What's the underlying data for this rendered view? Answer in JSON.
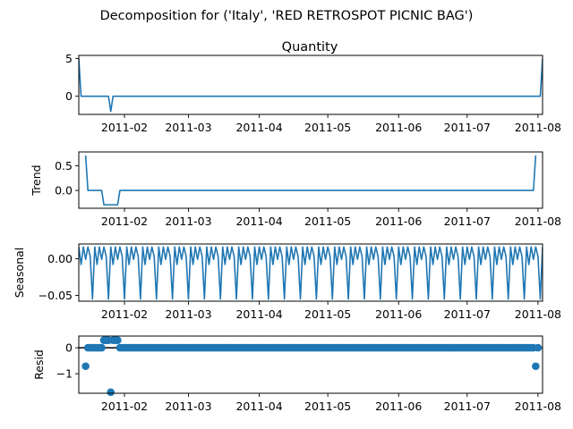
{
  "suptitle": "Decomposition for ('Italy', 'RED RETROSPOT PICNIC BAG')",
  "colors": {
    "line": "#1f77b4",
    "zero_line": "#000000"
  },
  "chart_data": {
    "type": "line",
    "x_range": [
      "2011-01-12",
      "2011-08-03"
    ],
    "x_ticks": [
      "2011-02-01",
      "2011-03-01",
      "2011-04-01",
      "2011-05-01",
      "2011-06-01",
      "2011-07-01",
      "2011-08-01"
    ],
    "x_tick_labels": [
      "2011-02",
      "2011-03",
      "2011-04",
      "2011-05",
      "2011-06",
      "2011-07",
      "2011-08"
    ],
    "panels": [
      {
        "key": "quantity",
        "title": "Quantity",
        "ylabel": "",
        "kind": "line",
        "ylim": [
          -2.4,
          5.4
        ],
        "yticks": [
          0,
          5
        ],
        "ytick_labels": [
          "0",
          "5"
        ],
        "points": [
          [
            "2011-01-12",
            5
          ],
          [
            "2011-01-13",
            0
          ],
          [
            "2011-01-25",
            0
          ],
          [
            "2011-01-26",
            -2
          ],
          [
            "2011-01-27",
            0
          ],
          [
            "2011-08-02",
            0
          ],
          [
            "2011-08-03",
            5
          ]
        ]
      },
      {
        "key": "trend",
        "title": "",
        "ylabel": "Trend",
        "kind": "line",
        "ylim": [
          -0.36,
          0.78
        ],
        "yticks": [
          0.0,
          0.5
        ],
        "ytick_labels": [
          "0.0",
          "0.5"
        ],
        "points": [
          [
            "2011-01-15",
            0.71
          ],
          [
            "2011-01-16",
            0.0
          ],
          [
            "2011-01-22",
            0.0
          ],
          [
            "2011-01-23",
            -0.29
          ],
          [
            "2011-01-29",
            -0.29
          ],
          [
            "2011-01-30",
            0.0
          ],
          [
            "2011-07-30",
            0.0
          ],
          [
            "2011-07-31",
            0.71
          ]
        ]
      },
      {
        "key": "seasonal",
        "title": "",
        "ylabel": "Seasonal",
        "kind": "seasonal",
        "ylim": [
          -0.058,
          0.02
        ],
        "yticks": [
          0.0,
          -0.05
        ],
        "ytick_labels": [
          "0.00",
          "−0.05"
        ],
        "pattern": [
          0.016,
          -0.008,
          0.016,
          -0.001,
          0.016,
          0.003,
          -0.055
        ]
      },
      {
        "key": "resid",
        "title": "",
        "ylabel": "Resid",
        "kind": "scatter",
        "ylim": [
          -1.75,
          0.45
        ],
        "yticks": [
          0,
          -1
        ],
        "ytick_labels": [
          "0",
          "−1"
        ],
        "zero_line": true,
        "points": [
          [
            "2011-01-15",
            -0.71
          ],
          [
            "2011-01-16",
            0.0
          ],
          [
            "2011-01-17",
            0.0
          ],
          [
            "2011-01-18",
            0.0
          ],
          [
            "2011-01-19",
            0.0
          ],
          [
            "2011-01-20",
            0.0
          ],
          [
            "2011-01-21",
            0.0
          ],
          [
            "2011-01-22",
            0.0
          ],
          [
            "2011-01-23",
            0.29
          ],
          [
            "2011-01-24",
            0.29
          ],
          [
            "2011-01-25",
            0.29
          ],
          [
            "2011-01-26",
            -1.71
          ],
          [
            "2011-01-27",
            0.29
          ],
          [
            "2011-01-28",
            0.29
          ],
          [
            "2011-01-29",
            0.29
          ],
          [
            "2011-07-31",
            -0.71
          ]
        ]
      }
    ]
  }
}
